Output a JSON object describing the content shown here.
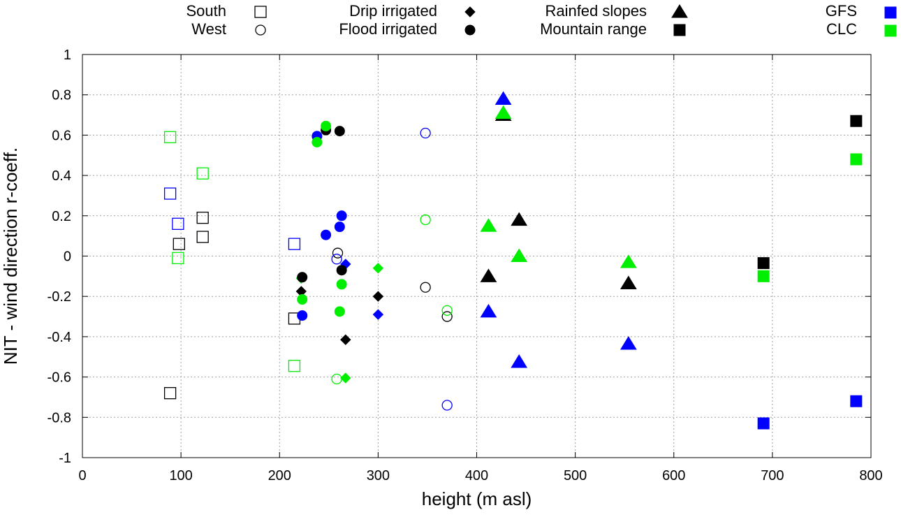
{
  "chart_data": {
    "type": "scatter",
    "xlabel": "height (m asl)",
    "ylabel": "NIT - wind direction r-coeff.",
    "xlim": [
      0,
      800
    ],
    "ylim": [
      -1,
      1
    ],
    "xticks": [
      0,
      100,
      200,
      300,
      400,
      500,
      600,
      700,
      800
    ],
    "yticks": [
      -1,
      -0.8,
      -0.6,
      -0.4,
      -0.2,
      0,
      0.2,
      0.4,
      0.6,
      0.8,
      1
    ],
    "grid": true,
    "legend": {
      "placement": "top, above plot",
      "categories": [
        {
          "name": "South",
          "marker": "square",
          "filled": false
        },
        {
          "name": "West",
          "marker": "circle",
          "filled": false
        },
        {
          "name": "Drip irrigated",
          "marker": "diamond",
          "filled": true
        },
        {
          "name": "Flood irrigated",
          "marker": "circle",
          "filled": true
        },
        {
          "name": "Rainfed slopes",
          "marker": "triangle",
          "filled": true
        },
        {
          "name": "Mountain range",
          "marker": "square",
          "filled": true
        }
      ],
      "models": [
        {
          "name": "GFS",
          "color": "#0000ff"
        },
        {
          "name": "CLC",
          "color": "#00ee00"
        }
      ]
    },
    "series": [
      {
        "name": "South (station)",
        "marker": "square",
        "filled": false,
        "color": "#000000",
        "points": [
          [
            89,
            -0.68
          ],
          [
            98,
            0.06
          ],
          [
            122,
            0.19
          ],
          [
            122,
            0.095
          ],
          [
            215,
            -0.31
          ]
        ]
      },
      {
        "name": "South (GFS)",
        "marker": "square",
        "filled": false,
        "color": "#0000ff",
        "points": [
          [
            89,
            0.31
          ],
          [
            97,
            0.16
          ],
          [
            215,
            0.06
          ]
        ]
      },
      {
        "name": "South (CLC)",
        "marker": "square",
        "filled": false,
        "color": "#00ee00",
        "points": [
          [
            89,
            0.59
          ],
          [
            97,
            -0.01
          ],
          [
            122,
            0.41
          ],
          [
            215,
            -0.545
          ]
        ]
      },
      {
        "name": "West (station)",
        "marker": "circle",
        "filled": false,
        "color": "#000000",
        "points": [
          [
            259,
            0.015
          ],
          [
            348,
            -0.155
          ],
          [
            370,
            -0.3
          ]
        ]
      },
      {
        "name": "West (GFS)",
        "marker": "circle",
        "filled": false,
        "color": "#0000ff",
        "points": [
          [
            258,
            -0.015
          ],
          [
            348,
            0.61
          ],
          [
            370,
            -0.74
          ]
        ]
      },
      {
        "name": "West (CLC)",
        "marker": "circle",
        "filled": false,
        "color": "#00ee00",
        "points": [
          [
            258,
            -0.61
          ],
          [
            348,
            0.18
          ],
          [
            370,
            -0.27
          ]
        ]
      },
      {
        "name": "Drip irrigated (station)",
        "marker": "diamond",
        "filled": true,
        "color": "#000000",
        "points": [
          [
            222,
            -0.175
          ],
          [
            267,
            -0.415
          ],
          [
            300,
            -0.2
          ]
        ]
      },
      {
        "name": "Drip irrigated (GFS)",
        "marker": "diamond",
        "filled": true,
        "color": "#0000ff",
        "points": [
          [
            267,
            -0.04
          ],
          [
            300,
            -0.29
          ]
        ]
      },
      {
        "name": "Drip irrigated (CLC)",
        "marker": "diamond",
        "filled": true,
        "color": "#00ee00",
        "points": [
          [
            222,
            -0.11
          ],
          [
            267,
            -0.605
          ],
          [
            300,
            -0.06
          ]
        ]
      },
      {
        "name": "Flood irrigated (station)",
        "marker": "circle",
        "filled": true,
        "color": "#000000",
        "points": [
          [
            223,
            -0.105
          ],
          [
            247,
            0.625
          ],
          [
            261,
            0.62
          ],
          [
            263,
            -0.07
          ]
        ]
      },
      {
        "name": "Flood irrigated (GFS)",
        "marker": "circle",
        "filled": true,
        "color": "#0000ff",
        "points": [
          [
            223,
            -0.295
          ],
          [
            238,
            0.595
          ],
          [
            247,
            0.105
          ],
          [
            261,
            0.145
          ],
          [
            263,
            0.2
          ]
        ]
      },
      {
        "name": "Flood irrigated (CLC)",
        "marker": "circle",
        "filled": true,
        "color": "#00ee00",
        "points": [
          [
            223,
            -0.215
          ],
          [
            238,
            0.565
          ],
          [
            247,
            0.645
          ],
          [
            261,
            -0.275
          ],
          [
            263,
            -0.14
          ]
        ]
      },
      {
        "name": "Rainfed slopes (station)",
        "marker": "triangle",
        "filled": true,
        "color": "#000000",
        "points": [
          [
            412,
            -0.1
          ],
          [
            427,
            0.7
          ],
          [
            443,
            0.18
          ],
          [
            554,
            -0.135
          ]
        ]
      },
      {
        "name": "Rainfed slopes (GFS)",
        "marker": "triangle",
        "filled": true,
        "color": "#0000ff",
        "points": [
          [
            412,
            -0.275
          ],
          [
            427,
            0.78
          ],
          [
            443,
            -0.525
          ],
          [
            554,
            -0.435
          ]
        ]
      },
      {
        "name": "Rainfed slopes (CLC)",
        "marker": "triangle",
        "filled": true,
        "color": "#00ee00",
        "points": [
          [
            412,
            0.15
          ],
          [
            427,
            0.71
          ],
          [
            443,
            0.0
          ],
          [
            554,
            -0.03
          ]
        ]
      },
      {
        "name": "Mountain range (station)",
        "marker": "square",
        "filled": true,
        "color": "#000000",
        "points": [
          [
            691,
            -0.035
          ],
          [
            785,
            0.67
          ]
        ]
      },
      {
        "name": "Mountain range (GFS)",
        "marker": "square",
        "filled": true,
        "color": "#0000ff",
        "points": [
          [
            691,
            -0.83
          ],
          [
            785,
            -0.72
          ]
        ]
      },
      {
        "name": "Mountain range (CLC)",
        "marker": "square",
        "filled": true,
        "color": "#00ee00",
        "points": [
          [
            691,
            -0.1
          ],
          [
            785,
            0.48
          ]
        ]
      }
    ]
  }
}
